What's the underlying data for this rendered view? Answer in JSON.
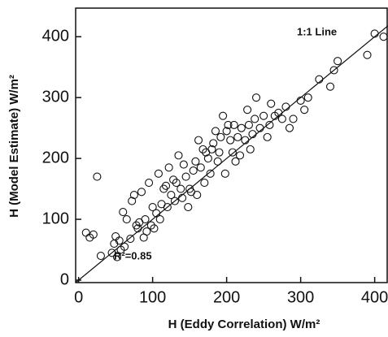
{
  "chart_data": {
    "type": "scatter",
    "x_label": "H (Eddy Correlation) W/m²",
    "y_label": "H (Model Estimate) W/m²",
    "annotations": [
      "1:1 Line",
      "R²=0.85"
    ],
    "x": [
      10,
      15,
      20,
      25,
      30,
      45,
      48,
      50,
      52,
      55,
      57,
      60,
      62,
      65,
      70,
      72,
      75,
      78,
      80,
      82,
      85,
      88,
      90,
      92,
      95,
      98,
      100,
      102,
      105,
      108,
      110,
      112,
      115,
      118,
      120,
      122,
      125,
      128,
      130,
      132,
      135,
      138,
      140,
      142,
      145,
      148,
      150,
      152,
      155,
      158,
      160,
      162,
      165,
      168,
      170,
      172,
      175,
      178,
      180,
      182,
      185,
      188,
      190,
      192,
      195,
      198,
      200,
      202,
      205,
      208,
      210,
      212,
      215,
      218,
      220,
      225,
      228,
      230,
      232,
      235,
      238,
      240,
      245,
      250,
      255,
      258,
      260,
      265,
      270,
      275,
      280,
      285,
      290,
      300,
      305,
      310,
      325,
      340,
      345,
      350,
      390,
      400,
      412
    ],
    "values": [
      78,
      70,
      75,
      170,
      40,
      45,
      60,
      72,
      38,
      65,
      50,
      112,
      55,
      100,
      68,
      130,
      140,
      90,
      85,
      95,
      145,
      70,
      100,
      80,
      160,
      90,
      120,
      85,
      110,
      175,
      100,
      125,
      150,
      155,
      120,
      185,
      140,
      165,
      130,
      160,
      205,
      150,
      135,
      190,
      170,
      120,
      150,
      145,
      180,
      195,
      140,
      230,
      185,
      215,
      160,
      210,
      200,
      175,
      215,
      225,
      245,
      195,
      210,
      235,
      270,
      175,
      245,
      255,
      230,
      210,
      255,
      195,
      235,
      205,
      250,
      230,
      280,
      255,
      215,
      240,
      265,
      300,
      250,
      270,
      235,
      255,
      290,
      270,
      275,
      265,
      285,
      250,
      265,
      295,
      280,
      300,
      330,
      318,
      345,
      360,
      370,
      405,
      400
    ],
    "color": "#111111",
    "xlim": [
      -4,
      418
    ],
    "ylim": [
      -4,
      447
    ],
    "xticks": [
      0,
      100,
      200,
      300,
      400
    ],
    "yticks": [
      0,
      100,
      200,
      300,
      400
    ]
  }
}
